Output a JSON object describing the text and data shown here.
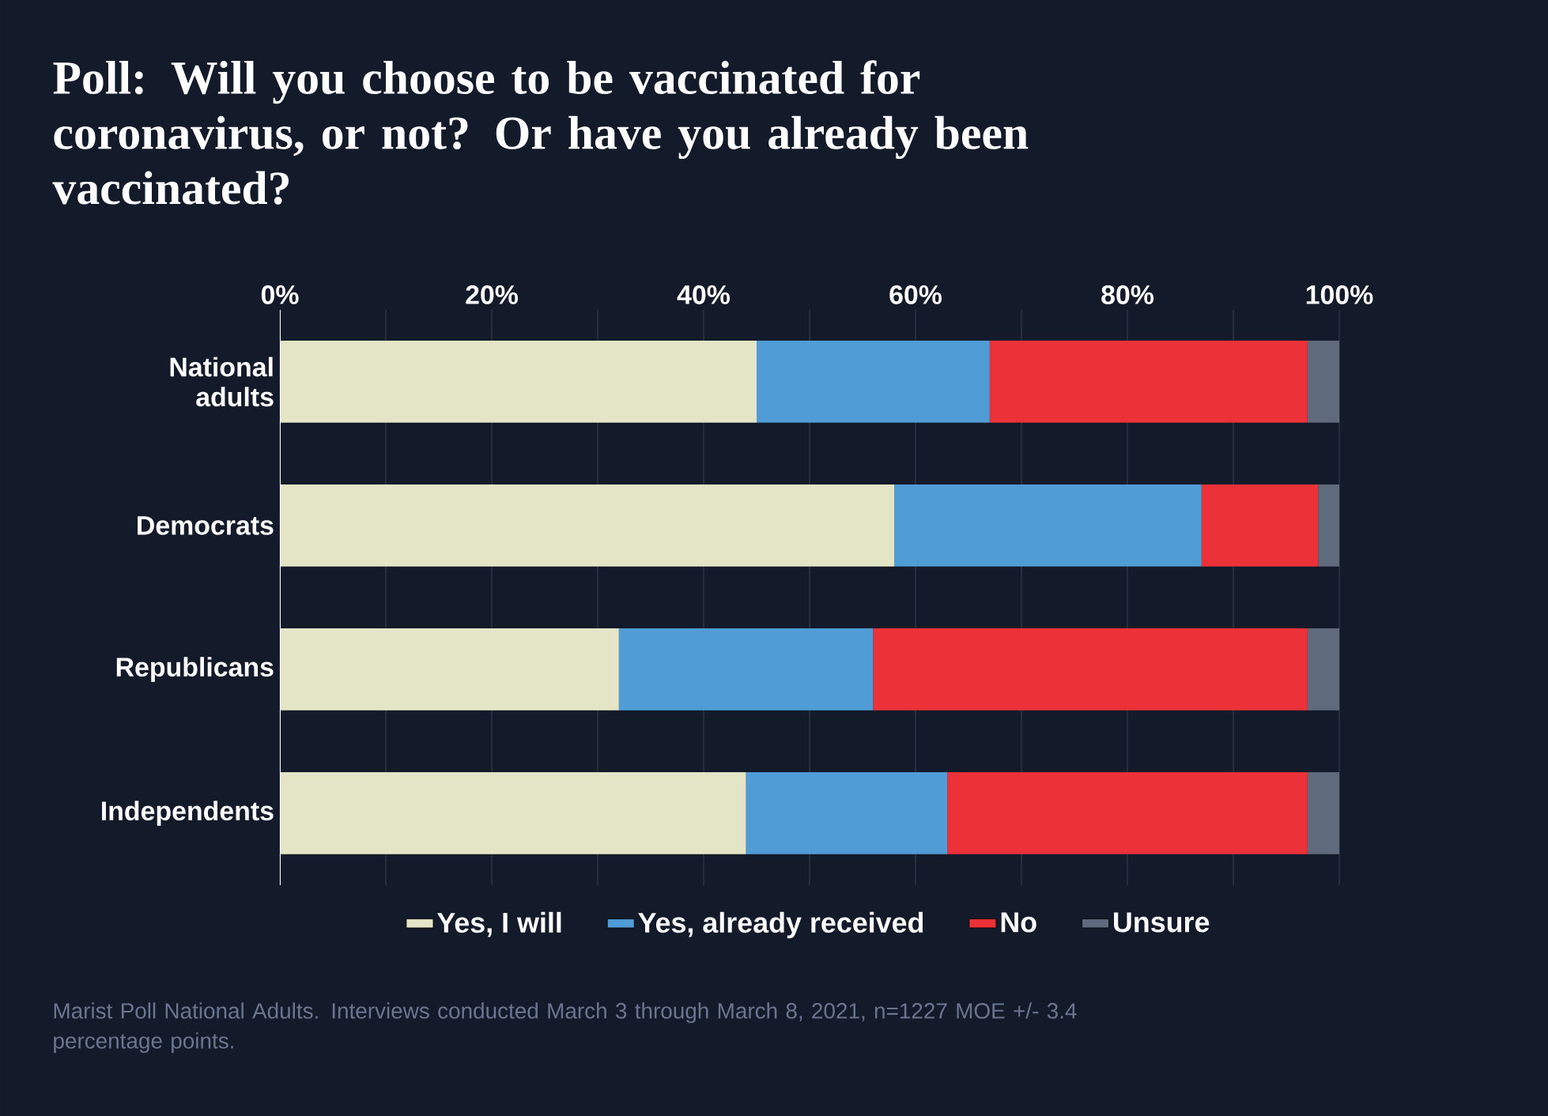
{
  "chart_data": {
    "type": "bar",
    "orientation": "horizontal",
    "stacked": true,
    "title": "Poll: Will you choose to be vaccinated for coronavirus, or not? Or have you already been vaccinated?",
    "categories": [
      "National adults",
      "Democrats",
      "Republicans",
      "Independents"
    ],
    "series": [
      {
        "name": "Yes, I will",
        "color": "#e3e5c6",
        "values": [
          45,
          58,
          32,
          44
        ]
      },
      {
        "name": "Yes, already received",
        "color": "#509cd6",
        "values": [
          22,
          29,
          24,
          19
        ]
      },
      {
        "name": "No",
        "color": "#ec3138",
        "values": [
          30,
          11,
          41,
          34
        ]
      },
      {
        "name": "Unsure",
        "color": "#5f6a7d",
        "values": [
          3,
          2,
          3,
          3
        ]
      }
    ],
    "xlim": [
      0,
      100
    ],
    "xticks": [
      {
        "value": 0,
        "label": "0%"
      },
      {
        "value": 10,
        "label": null
      },
      {
        "value": 20,
        "label": "20%"
      },
      {
        "value": 30,
        "label": null
      },
      {
        "value": 40,
        "label": "40%"
      },
      {
        "value": 50,
        "label": null
      },
      {
        "value": 60,
        "label": "60%"
      },
      {
        "value": 70,
        "label": null
      },
      {
        "value": 80,
        "label": "80%"
      },
      {
        "value": 90,
        "label": null
      },
      {
        "value": 100,
        "label": "100%"
      }
    ],
    "grid": "x",
    "legend": "bottom",
    "annotations": [
      "Marist Poll National Adults. Interviews conducted March 3 through March 8, 2021, n=1227 MOE +/- 3.4 percentage points."
    ]
  }
}
